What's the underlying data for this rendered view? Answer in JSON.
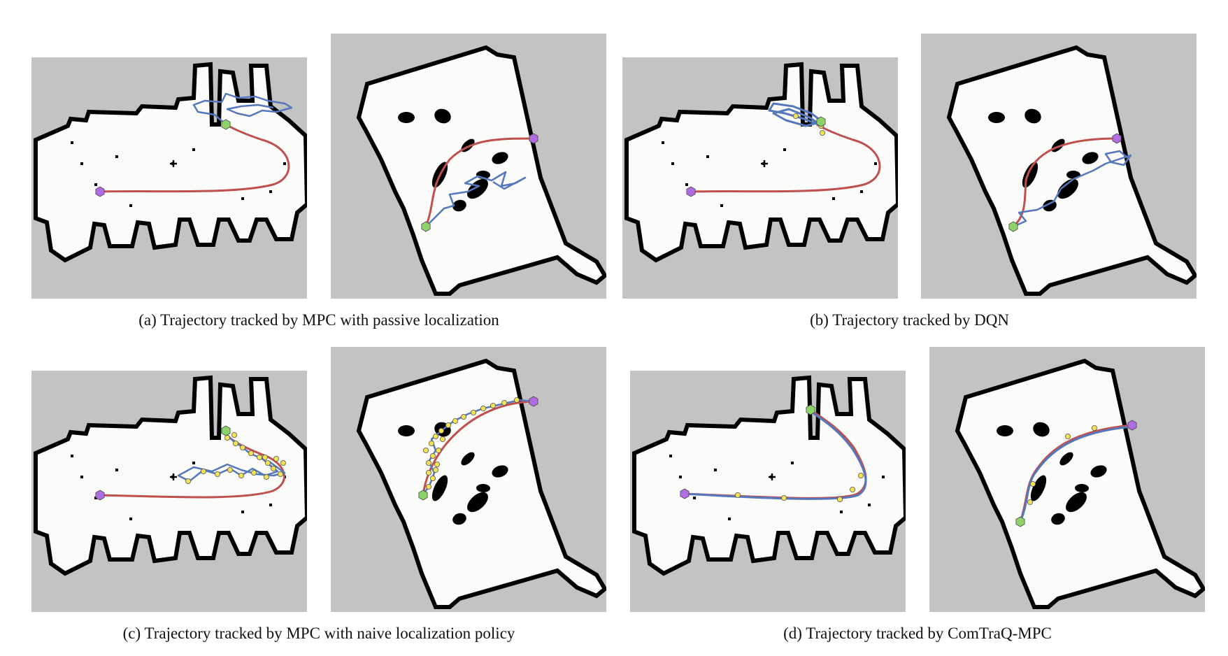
{
  "figure": {
    "subfigures": [
      {
        "id": "a",
        "caption": "(a) Trajectory tracked by MPC with passive localization",
        "style": "passive"
      },
      {
        "id": "b",
        "caption": "(b) Trajectory tracked by DQN",
        "style": "dqn"
      },
      {
        "id": "c",
        "caption": "(c) Trajectory tracked by MPC with naive localization policy",
        "style": "naive"
      },
      {
        "id": "d",
        "caption": "(d) Trajectory tracked by ComTraQ-MPC",
        "style": "comtraq"
      }
    ]
  },
  "colors": {
    "map_unknown": "#c3c3c3",
    "map_free": "#fbfbf9",
    "map_wall": "#000000",
    "reference_path": "#c0504d",
    "tracked_path": "#5577bb",
    "localization_point": "#f3e255",
    "start_marker": "#8ed36a",
    "goal_marker": "#b06ce0"
  }
}
